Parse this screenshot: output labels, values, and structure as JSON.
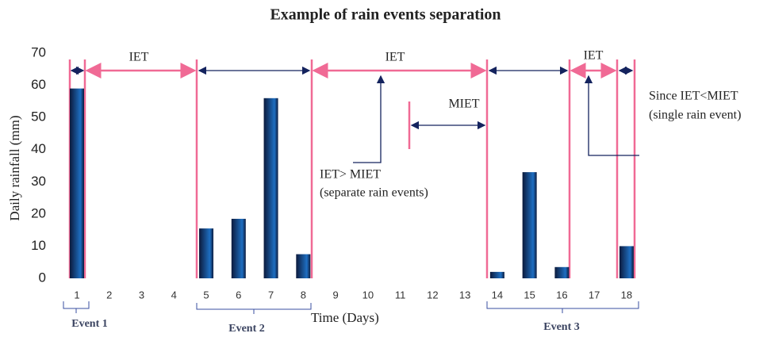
{
  "chart_data": {
    "type": "bar",
    "title": "Example of rain events separation",
    "x_label": "Time (Days)",
    "y_label": "Daily rainfall (mm)",
    "categories": [
      "1",
      "2",
      "3",
      "4",
      "5",
      "6",
      "7",
      "8",
      "9",
      "10",
      "11",
      "12",
      "13",
      "14",
      "15",
      "16",
      "17",
      "18"
    ],
    "values": [
      59,
      0,
      0,
      0,
      15.5,
      18.5,
      56,
      7.5,
      0,
      0,
      0,
      0,
      0,
      2,
      33,
      3.5,
      0,
      10
    ],
    "color": "#1e6fc2",
    "ylim": [
      0,
      70
    ],
    "yticks": [
      0,
      10,
      20,
      30,
      40,
      50,
      60,
      70
    ],
    "grid": false,
    "annotations": [
      "IET",
      "IET",
      "IET",
      "MIET",
      "IET> MIET",
      "(separate rain events)",
      "Since IET<MIET",
      "(single rain event)"
    ],
    "events": [
      "Event 1",
      "Event 2",
      "Event 3"
    ]
  }
}
